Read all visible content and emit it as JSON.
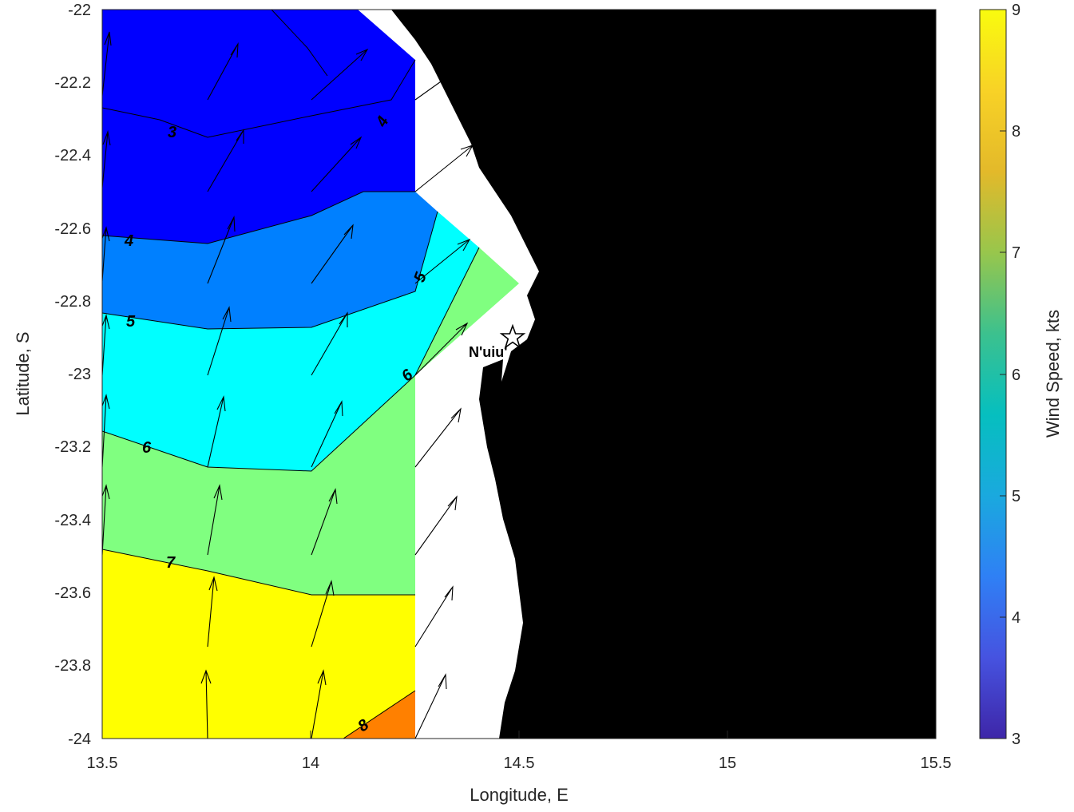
{
  "chart_data": {
    "type": "filled-contour-map",
    "xlabel": "Longitude, E",
    "ylabel": "Latitude, S",
    "xlim": [
      13.5,
      15.5
    ],
    "ylim": [
      -24,
      -22
    ],
    "x_ticks": [
      "13.5",
      "14",
      "14.5",
      "15",
      "15.5"
    ],
    "y_ticks": [
      "-22",
      "-22.2",
      "-22.4",
      "-22.6",
      "-22.8",
      "-23",
      "-23.2",
      "-23.4",
      "-23.6",
      "-23.8",
      "-24"
    ],
    "colorbar": {
      "label": "Wind Speed, kts",
      "range": [
        3,
        9
      ],
      "ticks": [
        "3",
        "4",
        "5",
        "6",
        "7",
        "8",
        "9"
      ],
      "colormap": "parula",
      "stops": [
        "#3e26a8",
        "#4653e0",
        "#2f80f5",
        "#1aa9de",
        "#06bfbf",
        "#3cc18e",
        "#98c64c",
        "#e3b92a",
        "#f8d226",
        "#f9fb0e"
      ]
    },
    "contour_levels": [
      {
        "value": 3,
        "label": "3",
        "fill": "#0000ff"
      },
      {
        "value": 4,
        "label": "4",
        "fill": "#0080ff"
      },
      {
        "value": 5,
        "label": "5",
        "fill": "#00ffff"
      },
      {
        "value": 6,
        "label": "6",
        "fill": "#80ff80"
      },
      {
        "value": 7,
        "label": "7",
        "fill": "#ffff00"
      },
      {
        "value": 8,
        "label": "8",
        "fill": "#ff8000"
      }
    ],
    "grid_lon": [
      13.5,
      13.75,
      14.0,
      14.25
    ],
    "grid_lat": [
      -22.0,
      -22.35,
      -22.6,
      -22.9,
      -23.2,
      -23.5,
      -23.9,
      -24.0
    ],
    "wind_arrows_row_spacing_deg": 0.35,
    "land_color": "#000000",
    "places": [
      {
        "name": "N'uiu'",
        "lon": 14.48,
        "lat": -22.9,
        "marker": "star"
      }
    ],
    "grid": false
  }
}
